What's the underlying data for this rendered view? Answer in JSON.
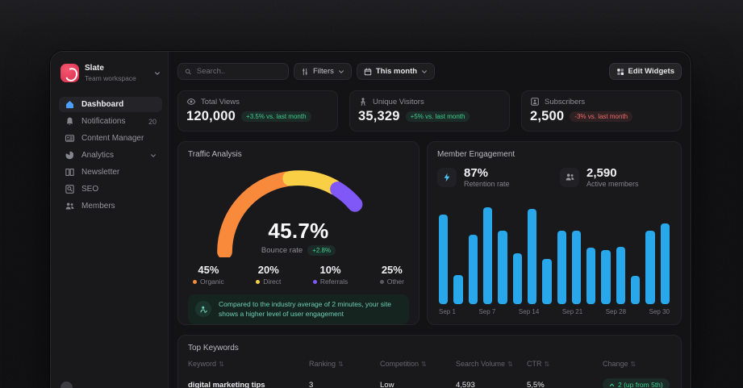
{
  "sidebar": {
    "workspace": {
      "name": "Slate",
      "subtitle": "Team workspace"
    },
    "items": [
      {
        "label": "Dashboard"
      },
      {
        "label": "Notifications",
        "badge": "20"
      },
      {
        "label": "Content Manager"
      },
      {
        "label": "Analytics"
      },
      {
        "label": "Newsletter"
      },
      {
        "label": "SEO"
      },
      {
        "label": "Members"
      }
    ]
  },
  "topbar": {
    "search_placeholder": "Search..",
    "filters_label": "Filters",
    "period_label": "This month",
    "edit_widgets_label": "Edit Widgets"
  },
  "stats": [
    {
      "label": "Total Views",
      "value": "120,000",
      "delta": "+3.5% vs. last month",
      "trend": "up"
    },
    {
      "label": "Unique Visitors",
      "value": "35,329",
      "delta": "+5% vs. last month",
      "trend": "up"
    },
    {
      "label": "Subscribers",
      "value": "2,500",
      "delta": "-3% vs. last month",
      "trend": "down"
    }
  ],
  "traffic": {
    "title": "Traffic Analysis",
    "gauge_value": "45.7%",
    "gauge_label": "Bounce rate",
    "gauge_delta": "+2.8%",
    "legend": [
      {
        "pct": "45%",
        "label": "Organic",
        "color": "#f98a3c"
      },
      {
        "pct": "20%",
        "label": "Direct",
        "color": "#f9d045"
      },
      {
        "pct": "10%",
        "label": "Referrals",
        "color": "#8058f8"
      },
      {
        "pct": "25%",
        "label": "Other",
        "color": "#5a5a60"
      }
    ],
    "note": "Compared to the industry average of 2 minutes, your site shows a higher level of user engagement"
  },
  "engagement": {
    "title": "Member Engagement",
    "metrics": [
      {
        "value": "87%",
        "label": "Retention rate"
      },
      {
        "value": "2,590",
        "label": "Active members"
      }
    ]
  },
  "chart_data": [
    {
      "type": "pie",
      "title": "Traffic Analysis (gauge)",
      "slices": [
        {
          "label": "Organic",
          "value": 45,
          "color": "#f98a3c"
        },
        {
          "label": "Direct",
          "value": 20,
          "color": "#f9d045"
        },
        {
          "label": "Referrals",
          "value": 10,
          "color": "#8058f8"
        },
        {
          "label": "Other",
          "value": 25,
          "color": "#3f3f45"
        }
      ],
      "center_value": "45.7%",
      "center_label": "Bounce rate",
      "center_delta": "+2.8%"
    },
    {
      "type": "bar",
      "title": "Member Engagement activity",
      "x_tick_labels": [
        "Sep 1",
        "Sep 7",
        "Sep 14",
        "Sep 21",
        "Sep 28",
        "Sep 30"
      ],
      "values": [
        83,
        27,
        64,
        90,
        68,
        47,
        88,
        42,
        68,
        68,
        52,
        50,
        53,
        26,
        68,
        75
      ],
      "ylim": [
        0,
        100
      ],
      "bar_color": "#28a7ea",
      "grid": false,
      "legend": "none"
    }
  ],
  "keywords": {
    "title": "Top Keywords",
    "columns": [
      "Keyword",
      "Ranking",
      "Competition",
      "Search Volume",
      "CTR",
      "Change"
    ],
    "rows": [
      {
        "keyword": "digital marketing tips",
        "ranking": "3",
        "competition": "Low",
        "search_volume": "4,593",
        "ctr": "5,5%",
        "change": "2 (up from 5th)"
      }
    ]
  }
}
